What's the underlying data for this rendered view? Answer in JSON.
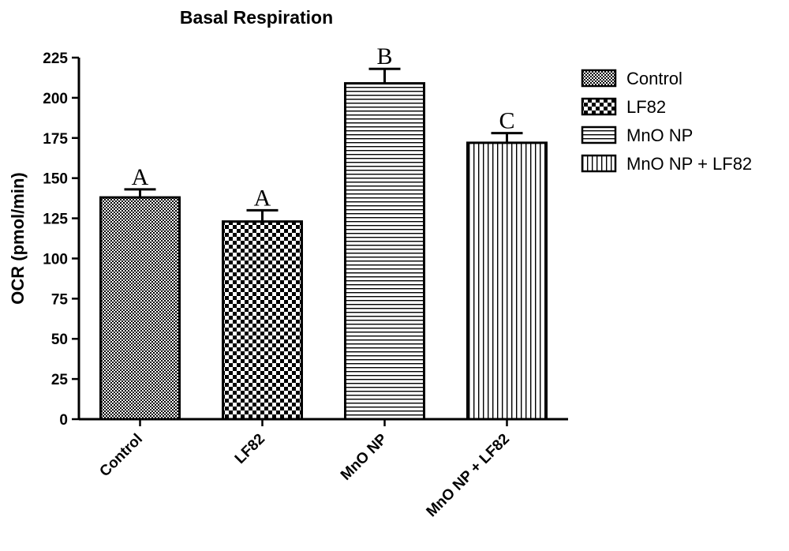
{
  "chart_data": {
    "type": "bar",
    "title": "Basal Respiration",
    "ylabel": "OCR (pmol/min)",
    "xlabel": "",
    "ylim": [
      0,
      225
    ],
    "yticks": [
      0,
      25,
      50,
      75,
      100,
      125,
      150,
      175,
      200,
      225
    ],
    "categories": [
      "Control",
      "LF82",
      "MnO NP",
      "MnO NP + LF82"
    ],
    "values": [
      138,
      123,
      209,
      172
    ],
    "errors": [
      5,
      7,
      9,
      6
    ],
    "significance": [
      "A",
      "A",
      "B",
      "C"
    ],
    "patterns": [
      "fine-checker",
      "checker",
      "horizontal-lines",
      "vertical-lines"
    ],
    "legend": {
      "position": "right",
      "entries": [
        "Control",
        "LF82",
        "MnO NP",
        "MnO NP + LF82"
      ]
    },
    "grid": false
  }
}
